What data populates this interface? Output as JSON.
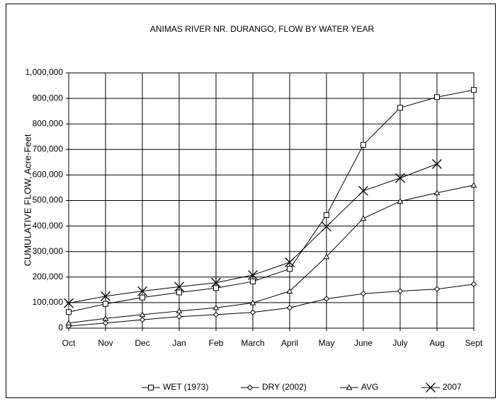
{
  "chart_data": {
    "type": "line",
    "title": "ANIMAS RIVER NR. DURANGO, FLOW BY WATER YEAR",
    "y_label": "CUMULATIVE FLOW, Acre-Feet",
    "categories": [
      "Oct",
      "Nov",
      "Dec",
      "Jan",
      "Feb",
      "March",
      "April",
      "May",
      "June",
      "July",
      "Aug",
      "Sept"
    ],
    "series": [
      {
        "name": "WET (1973)",
        "color": "#000000",
        "marker": "square",
        "values": [
          63000,
          95000,
          120000,
          140000,
          157000,
          183000,
          232000,
          443000,
          718000,
          863000,
          905000,
          933000
        ]
      },
      {
        "name": "DRY (2002)",
        "color": "#000000",
        "marker": "diamond",
        "values": [
          8000,
          20000,
          33000,
          45000,
          53000,
          62000,
          80000,
          115000,
          135000,
          145000,
          153000,
          172000
        ]
      },
      {
        "name": "AVG",
        "color": "#000000",
        "marker": "triangle",
        "values": [
          20000,
          38000,
          53000,
          67000,
          80000,
          99000,
          145000,
          280000,
          430000,
          497000,
          530000,
          560000
        ]
      },
      {
        "name": "2007",
        "color": "#000000",
        "marker": "x",
        "values": [
          98000,
          125000,
          145000,
          162000,
          178000,
          208000,
          258000,
          398000,
          538000,
          588000,
          643000,
          null
        ]
      }
    ],
    "ylim": [
      0,
      1000000
    ],
    "yticks": [
      0,
      {
        "value": 100000,
        "label": "100,000"
      },
      {
        "value": 200000,
        "label": "200,000"
      },
      {
        "value": 300000,
        "label": "300,000"
      },
      {
        "value": 400000,
        "label": "400,000"
      },
      {
        "value": 500000,
        "label": "500,000"
      },
      {
        "value": 600000,
        "label": "600,000"
      },
      {
        "value": 700000,
        "label": "700,000"
      },
      {
        "value": 800000,
        "label": "800,000"
      },
      {
        "value": 900000,
        "label": "900,000"
      },
      {
        "value": 1000000,
        "label": "1,000,000"
      }
    ],
    "grid": true,
    "legend": "bottom"
  }
}
